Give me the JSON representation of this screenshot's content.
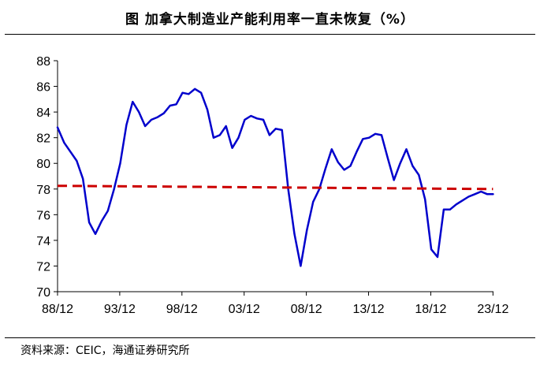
{
  "title": "图  加拿大制造业产能利用率一直未恢复（%）",
  "source": "资料来源：CEIC，海通证券研究所",
  "chart_data": {
    "type": "line",
    "title": "图  加拿大制造业产能利用率一直未恢复（%）",
    "xlabel": "",
    "ylabel": "",
    "ylim": [
      70,
      88
    ],
    "yticks": [
      "70",
      "72",
      "74",
      "76",
      "78",
      "80",
      "82",
      "84",
      "86",
      "88"
    ],
    "xticks": [
      "88/12",
      "93/12",
      "98/12",
      "03/12",
      "08/12",
      "13/12",
      "18/12",
      "23/12"
    ],
    "xlim": [
      1988.96,
      2024.0
    ],
    "grid": false,
    "series": [
      {
        "name": "",
        "color": "#0000cc",
        "style": "solid",
        "x": [
          1988.96,
          1989.5,
          1990.0,
          1990.5,
          1991.0,
          1991.5,
          1992.0,
          1992.5,
          1993.0,
          1993.5,
          1994.0,
          1994.5,
          1995.0,
          1995.5,
          1996.0,
          1996.5,
          1997.0,
          1997.5,
          1998.0,
          1998.5,
          1999.0,
          1999.5,
          2000.0,
          2000.5,
          2001.0,
          2001.5,
          2002.0,
          2002.5,
          2003.0,
          2003.5,
          2004.0,
          2004.5,
          2005.0,
          2005.5,
          2006.0,
          2006.5,
          2007.0,
          2007.5,
          2008.0,
          2008.5,
          2009.0,
          2009.5,
          2010.0,
          2010.5,
          2011.0,
          2011.5,
          2012.0,
          2012.5,
          2013.0,
          2013.5,
          2014.0,
          2014.5,
          2015.0,
          2015.5,
          2016.0,
          2016.5,
          2017.0,
          2017.5,
          2018.0,
          2018.5,
          2019.0,
          2019.5,
          2020.0,
          2020.5,
          2021.0,
          2021.5,
          2022.0,
          2022.5,
          2023.0,
          2023.5,
          2023.96
        ],
        "y": [
          82.8,
          81.6,
          80.9,
          80.2,
          78.8,
          75.4,
          74.5,
          75.5,
          76.3,
          78.0,
          80.0,
          83.0,
          84.8,
          84.0,
          82.9,
          83.4,
          83.6,
          83.9,
          84.5,
          84.6,
          85.5,
          85.4,
          85.8,
          85.5,
          84.2,
          82.0,
          82.2,
          82.9,
          81.2,
          82.0,
          83.4,
          83.7,
          83.5,
          83.4,
          82.2,
          82.7,
          82.6,
          78.0,
          74.5,
          72.0,
          74.8,
          77.0,
          78.0,
          79.6,
          81.1,
          80.1,
          79.5,
          79.8,
          80.9,
          81.9,
          82.0,
          82.3,
          82.2,
          80.4,
          78.7,
          80.0,
          81.1,
          79.8,
          79.1,
          77.2,
          73.3,
          72.7,
          76.4,
          76.4,
          76.8,
          77.1,
          77.4,
          77.6,
          77.8,
          77.6,
          77.6
        ]
      },
      {
        "name": "",
        "color": "#cc0000",
        "style": "dashed",
        "x": [
          1988.96,
          2023.96
        ],
        "y": [
          78.25,
          78.0
        ]
      }
    ]
  }
}
